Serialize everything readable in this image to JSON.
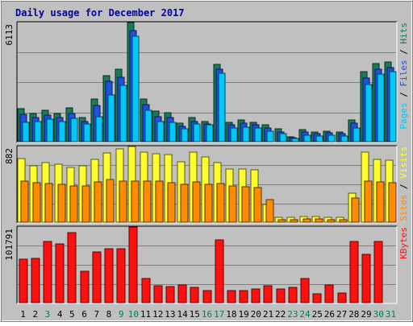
{
  "chart_data": {
    "type": "bar",
    "title": "Daily usage for December 2017",
    "categories": [
      "1",
      "2",
      "3",
      "4",
      "5",
      "6",
      "7",
      "8",
      "9",
      "10",
      "11",
      "12",
      "13",
      "14",
      "15",
      "16",
      "17",
      "18",
      "19",
      "20",
      "21",
      "22",
      "23",
      "24",
      "25",
      "26",
      "27",
      "28",
      "29",
      "30",
      "31"
    ],
    "weekend_days": [
      "3",
      "9",
      "10",
      "16",
      "17",
      "23",
      "24",
      "30",
      "31"
    ],
    "panels": [
      {
        "id": "hits",
        "max_label": "6113",
        "ymax": 6113,
        "series": [
          {
            "name": "Hits",
            "color": "#1a7a5a",
            "values": [
              1700,
              1450,
              1600,
              1450,
              1750,
              1250,
              2200,
              3400,
              3700,
              6113,
              2200,
              1550,
              1500,
              950,
              1250,
              1050,
              3950,
              1000,
              1100,
              1000,
              850,
              650,
              250,
              600,
              500,
              550,
              500,
              1100,
              3600,
              4000,
              4100
            ]
          },
          {
            "name": "Files",
            "color": "#2050e0",
            "values": [
              1400,
              1250,
              1350,
              1250,
              1450,
              1050,
              1850,
              3100,
              3300,
              5700,
              1900,
              1300,
              1250,
              800,
              1050,
              900,
              3700,
              850,
              950,
              850,
              700,
              500,
              200,
              500,
              400,
              450,
              400,
              950,
              3250,
              3700,
              3800
            ]
          },
          {
            "name": "Pages",
            "color": "#00c8f8",
            "values": [
              1000,
              1050,
              1150,
              1050,
              1200,
              900,
              1300,
              2400,
              2900,
              5400,
              1600,
              1050,
              1000,
              650,
              900,
              850,
              3500,
              700,
              750,
              700,
              550,
              400,
              150,
              350,
              300,
              350,
              300,
              700,
              2950,
              3450,
              3600
            ]
          }
        ],
        "legend": [
          "Pages",
          "Files",
          "Hits"
        ]
      },
      {
        "id": "visits",
        "max_label": "882",
        "ymax": 882,
        "series": [
          {
            "name": "Visits",
            "color": "#ffff30",
            "values": [
              740,
              660,
              690,
              680,
              640,
              660,
              730,
              810,
              850,
              882,
              820,
              800,
              790,
              700,
              820,
              760,
              690,
              620,
              620,
              610,
              210,
              60,
              60,
              70,
              70,
              60,
              60,
              340,
              820,
              730,
              720
            ]
          },
          {
            "name": "Sites",
            "color": "#ff8c00",
            "values": [
              480,
              460,
              450,
              440,
              420,
              420,
              470,
              500,
              480,
              480,
              480,
              480,
              460,
              440,
              470,
              440,
              450,
              420,
              410,
              400,
              260,
              30,
              30,
              40,
              40,
              30,
              30,
              280,
              480,
              470,
              460
            ]
          }
        ],
        "legend": [
          "Sites",
          "Visits"
        ]
      },
      {
        "id": "kbytes",
        "max_label": "101791",
        "ymax": 101791,
        "series": [
          {
            "name": "KBytes",
            "color": "#ff1010",
            "values": [
              58000,
              60000,
              82000,
              79000,
              94000,
              42000,
              68000,
              73000,
              73000,
              101791,
              33000,
              23000,
              22000,
              24000,
              21000,
              16000,
              85000,
              16000,
              16000,
              18000,
              23000,
              18000,
              21000,
              32000,
              12000,
              24000,
              13000,
              82000,
              65000,
              82000,
              0
            ]
          }
        ],
        "legend": [
          "KBytes"
        ]
      }
    ]
  }
}
